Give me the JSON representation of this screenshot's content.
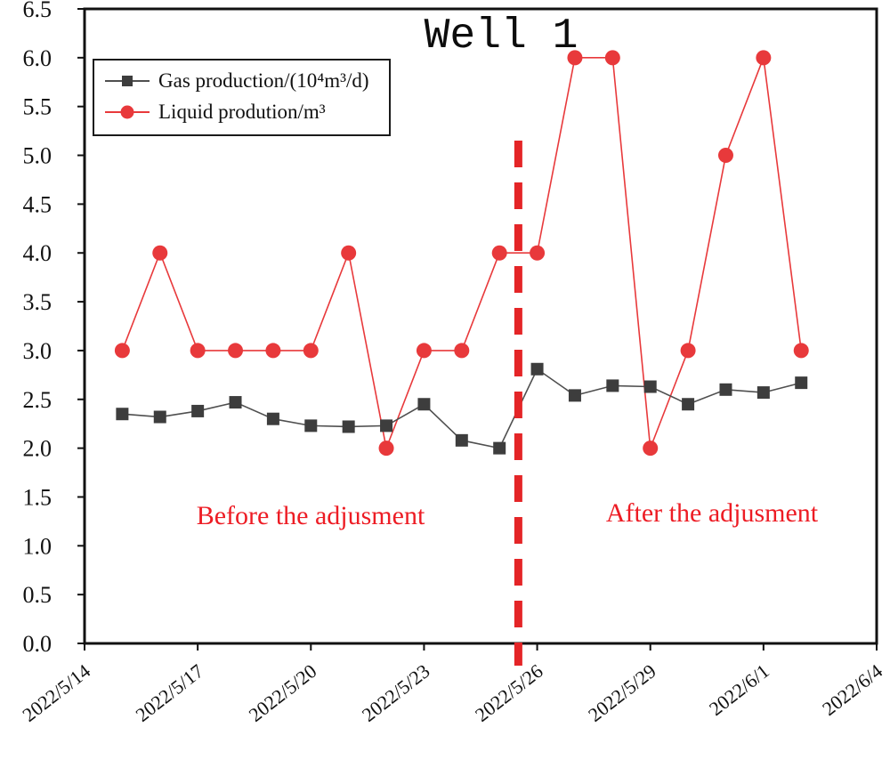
{
  "chart_data": {
    "type": "line",
    "title": "Well 1",
    "xlabel": "",
    "ylabel": "",
    "ylim": [
      0,
      6.5
    ],
    "y_tick_step": 0.5,
    "x_range_days": [
      0,
      21
    ],
    "x_tick_days": [
      0,
      3,
      6,
      9,
      12,
      15,
      18,
      21
    ],
    "x_tick_labels": [
      "2022/5/14",
      "2022/5/17",
      "2022/5/20",
      "2022/5/23",
      "2022/5/26",
      "2022/5/29",
      "2022/6/1",
      "2022/6/4"
    ],
    "x_days": [
      1,
      2,
      3,
      4,
      5,
      6,
      7,
      8,
      9,
      10,
      11,
      12,
      13,
      14,
      15,
      16,
      17,
      18,
      19
    ],
    "x_dates": [
      "2022/5/15",
      "2022/5/16",
      "2022/5/17",
      "2022/5/18",
      "2022/5/19",
      "2022/5/20",
      "2022/5/21",
      "2022/5/22",
      "2022/5/23",
      "2022/5/24",
      "2022/5/25",
      "2022/5/26",
      "2022/5/27",
      "2022/5/28",
      "2022/5/29",
      "2022/5/30",
      "2022/5/31",
      "2022/6/1",
      "2022/6/2"
    ],
    "series": [
      {
        "name": "Gas production/(10⁴m³/d)",
        "marker": "square",
        "color": "#3d3d3d",
        "line_color": "#4f4f4f",
        "values": [
          2.35,
          2.32,
          2.38,
          2.47,
          2.3,
          2.23,
          2.22,
          2.23,
          2.45,
          2.08,
          2.0,
          2.81,
          2.54,
          2.64,
          2.63,
          2.45,
          2.6,
          2.57,
          2.67
        ]
      },
      {
        "name": "Liquid prodution/m³",
        "marker": "circle",
        "color": "#e8393b",
        "line_color": "#e8393b",
        "values": [
          3,
          4,
          3,
          3,
          3,
          3,
          4,
          2,
          3,
          3,
          4,
          4,
          6,
          6,
          2,
          3,
          5,
          6,
          3
        ]
      }
    ],
    "divider_day": 11.5,
    "divider_color": "#e42527",
    "axis_color": "#111111",
    "grid": false,
    "legend_position": "top-left",
    "annotations": [
      {
        "text": "Before the adjusment",
        "x_day": 6,
        "y": 1.3,
        "color": "#ed1c24"
      },
      {
        "text": "After the adjusment",
        "x_day": 16.6,
        "y": 1.35,
        "color": "#ed1c24"
      }
    ]
  }
}
